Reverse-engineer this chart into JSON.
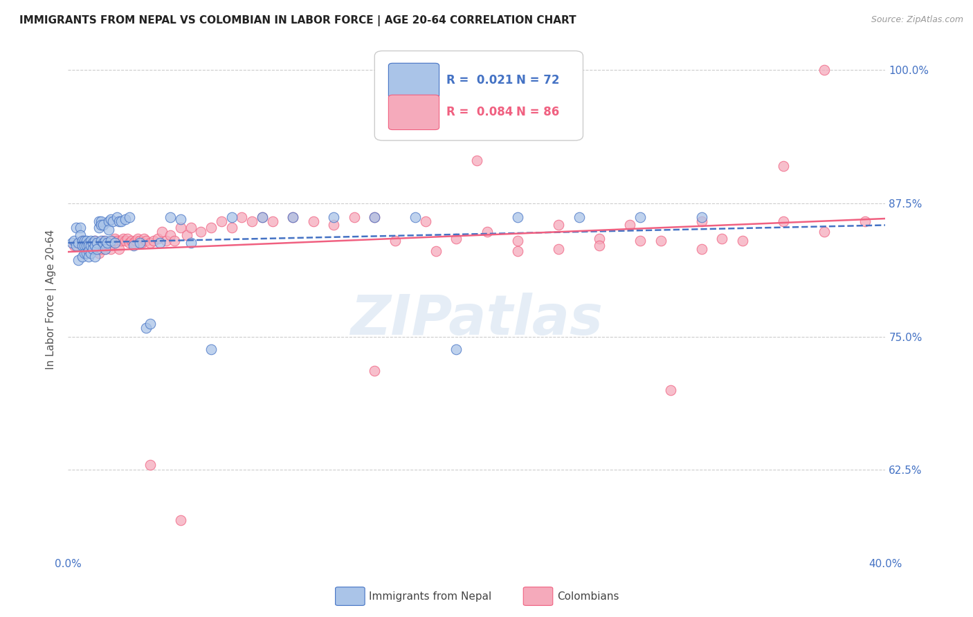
{
  "title": "IMMIGRANTS FROM NEPAL VS COLOMBIAN IN LABOR FORCE | AGE 20-64 CORRELATION CHART",
  "source": "Source: ZipAtlas.com",
  "ylabel": "In Labor Force | Age 20-64",
  "ytick_labels": [
    "100.0%",
    "87.5%",
    "75.0%",
    "62.5%"
  ],
  "ytick_values": [
    1.0,
    0.875,
    0.75,
    0.625
  ],
  "xlim": [
    0.0,
    0.4
  ],
  "ylim": [
    0.545,
    1.025
  ],
  "nepal_R": 0.021,
  "nepal_N": 72,
  "colombian_R": 0.084,
  "colombian_N": 86,
  "nepal_color": "#aac4e8",
  "colombian_color": "#f5aabb",
  "nepal_line_color": "#4472c4",
  "colombian_line_color": "#f06080",
  "watermark_text": "ZIPatlas",
  "nepal_x": [
    0.002,
    0.003,
    0.004,
    0.004,
    0.005,
    0.005,
    0.006,
    0.006,
    0.007,
    0.007,
    0.007,
    0.008,
    0.008,
    0.008,
    0.009,
    0.009,
    0.009,
    0.01,
    0.01,
    0.01,
    0.01,
    0.011,
    0.011,
    0.011,
    0.012,
    0.012,
    0.013,
    0.013,
    0.013,
    0.014,
    0.014,
    0.015,
    0.015,
    0.016,
    0.016,
    0.016,
    0.017,
    0.017,
    0.018,
    0.018,
    0.019,
    0.02,
    0.02,
    0.021,
    0.021,
    0.022,
    0.023,
    0.024,
    0.025,
    0.026,
    0.028,
    0.03,
    0.032,
    0.035,
    0.038,
    0.04,
    0.045,
    0.05,
    0.055,
    0.06,
    0.07,
    0.08,
    0.095,
    0.11,
    0.13,
    0.15,
    0.17,
    0.19,
    0.22,
    0.25,
    0.28,
    0.31
  ],
  "nepal_y": [
    0.838,
    0.84,
    0.852,
    0.835,
    0.838,
    0.822,
    0.852,
    0.845,
    0.84,
    0.835,
    0.825,
    0.84,
    0.835,
    0.828,
    0.84,
    0.835,
    0.828,
    0.838,
    0.835,
    0.83,
    0.825,
    0.84,
    0.835,
    0.828,
    0.838,
    0.832,
    0.84,
    0.835,
    0.825,
    0.838,
    0.832,
    0.852,
    0.858,
    0.84,
    0.858,
    0.855,
    0.838,
    0.855,
    0.84,
    0.832,
    0.838,
    0.858,
    0.85,
    0.84,
    0.86,
    0.858,
    0.838,
    0.862,
    0.858,
    0.858,
    0.86,
    0.862,
    0.835,
    0.838,
    0.758,
    0.762,
    0.838,
    0.862,
    0.86,
    0.838,
    0.738,
    0.862,
    0.862,
    0.862,
    0.862,
    0.862,
    0.862,
    0.738,
    0.862,
    0.862,
    0.862,
    0.862
  ],
  "colombian_x": [
    0.003,
    0.005,
    0.007,
    0.009,
    0.01,
    0.011,
    0.012,
    0.013,
    0.014,
    0.015,
    0.015,
    0.016,
    0.017,
    0.018,
    0.018,
    0.019,
    0.02,
    0.021,
    0.022,
    0.023,
    0.024,
    0.025,
    0.026,
    0.027,
    0.028,
    0.029,
    0.03,
    0.031,
    0.032,
    0.033,
    0.034,
    0.035,
    0.036,
    0.037,
    0.038,
    0.04,
    0.042,
    0.044,
    0.046,
    0.048,
    0.05,
    0.052,
    0.055,
    0.058,
    0.06,
    0.065,
    0.07,
    0.075,
    0.08,
    0.085,
    0.09,
    0.095,
    0.1,
    0.11,
    0.12,
    0.13,
    0.14,
    0.15,
    0.16,
    0.175,
    0.19,
    0.205,
    0.22,
    0.24,
    0.26,
    0.275,
    0.29,
    0.31,
    0.33,
    0.35,
    0.37,
    0.39,
    0.22,
    0.24,
    0.295,
    0.31,
    0.26,
    0.28,
    0.37,
    0.35,
    0.32,
    0.15,
    0.18,
    0.2,
    0.04,
    0.055
  ],
  "colombian_y": [
    0.835,
    0.838,
    0.84,
    0.838,
    0.835,
    0.832,
    0.835,
    0.84,
    0.835,
    0.835,
    0.828,
    0.832,
    0.84,
    0.838,
    0.832,
    0.838,
    0.835,
    0.832,
    0.84,
    0.842,
    0.84,
    0.832,
    0.84,
    0.842,
    0.84,
    0.842,
    0.838,
    0.84,
    0.838,
    0.84,
    0.842,
    0.84,
    0.838,
    0.842,
    0.84,
    0.838,
    0.84,
    0.842,
    0.848,
    0.84,
    0.845,
    0.84,
    0.852,
    0.845,
    0.852,
    0.848,
    0.852,
    0.858,
    0.852,
    0.862,
    0.858,
    0.862,
    0.858,
    0.862,
    0.858,
    0.855,
    0.862,
    0.862,
    0.84,
    0.858,
    0.842,
    0.848,
    0.84,
    0.855,
    0.842,
    0.855,
    0.84,
    0.858,
    0.84,
    0.858,
    0.848,
    0.858,
    0.83,
    0.832,
    0.7,
    0.832,
    0.835,
    0.84,
    1.0,
    0.91,
    0.842,
    0.718,
    0.83,
    0.915,
    0.63,
    0.578
  ]
}
